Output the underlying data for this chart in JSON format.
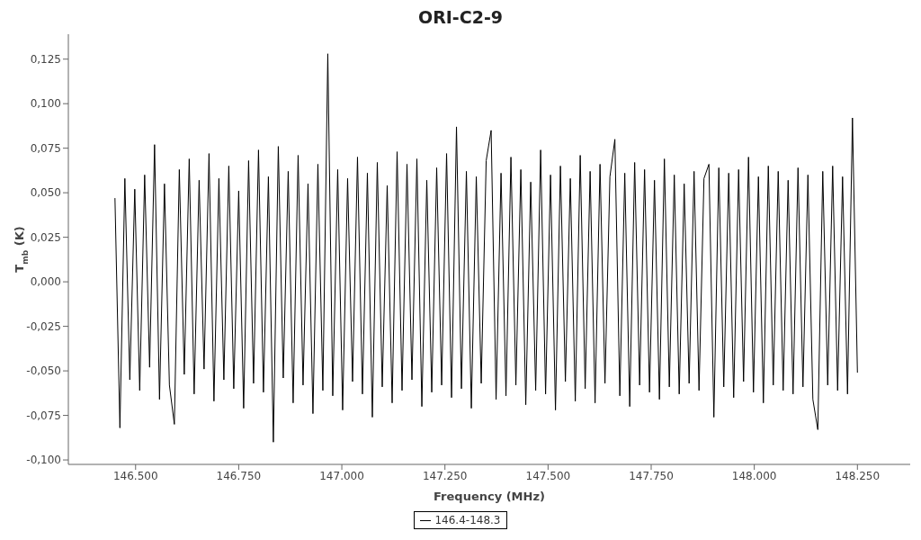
{
  "chart_data": {
    "type": "line",
    "title": "ORI-C2-9",
    "xlabel": "Frequency (MHz)",
    "ylabel": "T$_{mb}$ (K)",
    "xlim": [
      146337,
      148378
    ],
    "ylim": [
      -0.1025,
      0.139
    ],
    "xticks": [
      {
        "value": 146500,
        "label": "146.500"
      },
      {
        "value": 146750,
        "label": "146.750"
      },
      {
        "value": 147000,
        "label": "147.000"
      },
      {
        "value": 147250,
        "label": "147.250"
      },
      {
        "value": 147500,
        "label": "147.500"
      },
      {
        "value": 147750,
        "label": "147.750"
      },
      {
        "value": 148000,
        "label": "148.000"
      },
      {
        "value": 148250,
        "label": "148.250"
      }
    ],
    "yticks": [
      {
        "value": -0.1,
        "label": "-0,100"
      },
      {
        "value": -0.075,
        "label": "-0,075"
      },
      {
        "value": -0.05,
        "label": "-0,050"
      },
      {
        "value": -0.025,
        "label": "-0,025"
      },
      {
        "value": 0,
        "label": "0,000"
      },
      {
        "value": 0.025,
        "label": "0,025"
      },
      {
        "value": 0.05,
        "label": "0,050"
      },
      {
        "value": 0.075,
        "label": "0,075"
      },
      {
        "value": 0.1,
        "label": "0,100"
      },
      {
        "value": 0.125,
        "label": "0,125"
      }
    ],
    "legend": "bottom",
    "marker": "none",
    "line_style": "solid",
    "series": [
      {
        "name": "146.4-148.3",
        "color": "#000000",
        "x": [
          146450,
          146462,
          146474,
          146486,
          146498,
          146510,
          146522,
          146534,
          146546,
          146558,
          146570,
          146582,
          146594,
          146606,
          146618,
          146630,
          146642,
          146654,
          146666,
          146678,
          146690,
          146702,
          146714,
          146726,
          146738,
          146750,
          146762,
          146774,
          146786,
          146798,
          146810,
          146822,
          146834,
          146846,
          146858,
          146870,
          146882,
          146894,
          146906,
          146918,
          146930,
          146942,
          146954,
          146966,
          146978,
          146990,
          147002,
          147014,
          147026,
          147038,
          147050,
          147062,
          147074,
          147086,
          147098,
          147110,
          147122,
          147134,
          147146,
          147158,
          147170,
          147182,
          147194,
          147206,
          147218,
          147230,
          147242,
          147254,
          147266,
          147278,
          147290,
          147302,
          147314,
          147326,
          147338,
          147350,
          147362,
          147374,
          147386,
          147398,
          147410,
          147422,
          147434,
          147446,
          147458,
          147470,
          147482,
          147494,
          147506,
          147518,
          147530,
          147542,
          147554,
          147566,
          147578,
          147590,
          147602,
          147614,
          147626,
          147638,
          147650,
          147662,
          147674,
          147686,
          147698,
          147710,
          147722,
          147734,
          147746,
          147758,
          147770,
          147782,
          147794,
          147806,
          147818,
          147830,
          147842,
          147854,
          147866,
          147878,
          147890,
          147902,
          147914,
          147926,
          147938,
          147950,
          147962,
          147974,
          147986,
          147998,
          148010,
          148022,
          148034,
          148046,
          148058,
          148070,
          148082,
          148094,
          148106,
          148118,
          148130,
          148142,
          148154,
          148166,
          148178,
          148190,
          148202,
          148214,
          148226,
          148238,
          148250
        ],
        "values": [
          0.047,
          -0.082,
          0.058,
          -0.055,
          0.052,
          -0.061,
          0.06,
          -0.048,
          0.077,
          -0.066,
          0.055,
          -0.058,
          -0.08,
          0.063,
          -0.052,
          0.069,
          -0.063,
          0.057,
          -0.049,
          0.072,
          -0.067,
          0.058,
          -0.055,
          0.065,
          -0.06,
          0.051,
          -0.071,
          0.068,
          -0.057,
          0.074,
          -0.062,
          0.059,
          -0.09,
          0.076,
          -0.054,
          0.062,
          -0.068,
          0.071,
          -0.058,
          0.055,
          -0.074,
          0.066,
          -0.061,
          0.128,
          -0.064,
          0.063,
          -0.072,
          0.058,
          -0.056,
          0.07,
          -0.063,
          0.061,
          -0.076,
          0.067,
          -0.059,
          0.054,
          -0.068,
          0.073,
          -0.061,
          0.066,
          -0.055,
          0.069,
          -0.07,
          0.057,
          -0.062,
          0.064,
          -0.058,
          0.072,
          -0.065,
          0.087,
          -0.06,
          0.062,
          -0.071,
          0.059,
          -0.057,
          0.068,
          0.085,
          -0.066,
          0.061,
          -0.064,
          0.07,
          -0.058,
          0.063,
          -0.069,
          0.056,
          -0.061,
          0.074,
          -0.063,
          0.06,
          -0.072,
          0.065,
          -0.056,
          0.058,
          -0.067,
          0.071,
          -0.06,
          0.062,
          -0.068,
          0.066,
          -0.057,
          0.059,
          0.08,
          -0.064,
          0.061,
          -0.07,
          0.067,
          -0.058,
          0.063,
          -0.062,
          0.057,
          -0.066,
          0.069,
          -0.059,
          0.06,
          -0.063,
          0.055,
          -0.057,
          0.062,
          -0.061,
          0.058,
          0.066,
          -0.076,
          0.064,
          -0.059,
          0.061,
          -0.065,
          0.063,
          -0.056,
          0.07,
          -0.062,
          0.059,
          -0.068,
          0.065,
          -0.058,
          0.062,
          -0.061,
          0.057,
          -0.063,
          0.064,
          -0.059,
          0.06,
          -0.066,
          -0.083,
          0.062,
          -0.058,
          0.065,
          -0.061,
          0.059,
          -0.063,
          0.092,
          -0.051
        ]
      }
    ]
  }
}
